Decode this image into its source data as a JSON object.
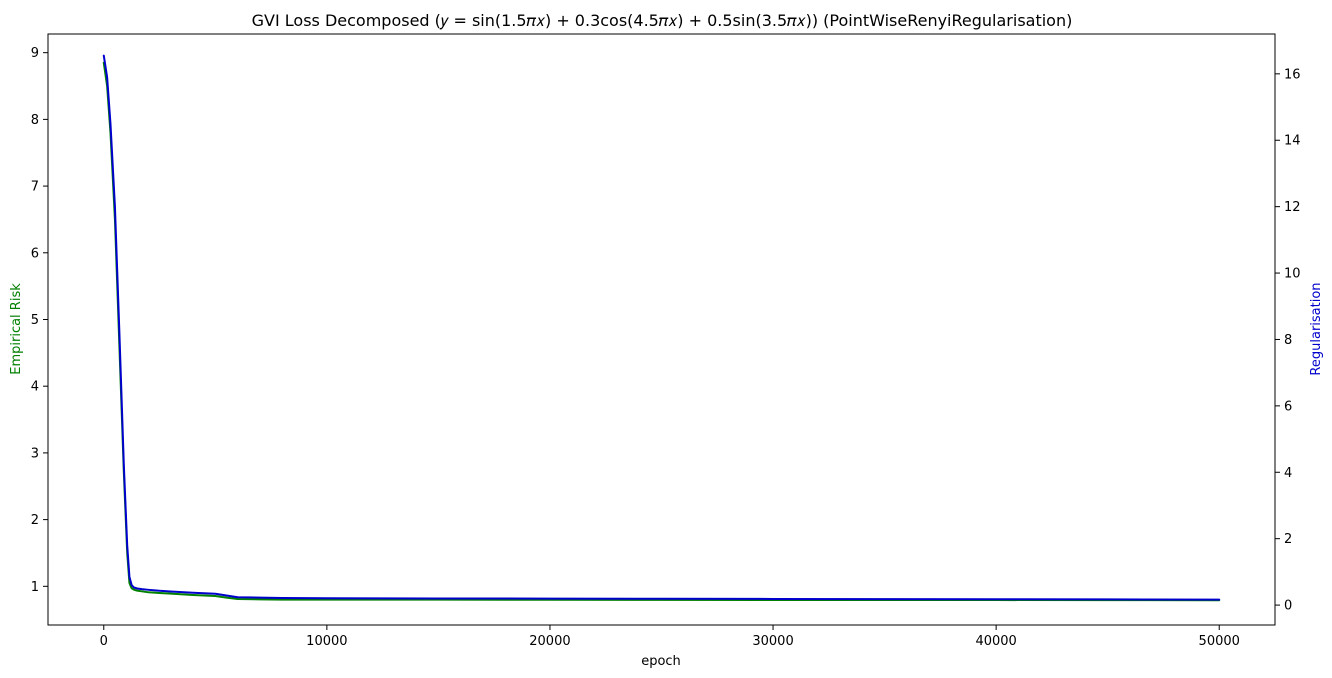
{
  "chart_data": {
    "type": "line",
    "title": "GVI Loss Decomposed (𝑦 = sin(1.5𝜋𝑥) + 0.3cos(4.5𝜋𝑥) + 0.5sin(3.5𝜋𝑥)) (PointWiseRenyiRegularisation)",
    "xlabel": "epoch",
    "ylabel_left": "Empirical Risk",
    "ylabel_right": "Regularisation",
    "xlim": [
      -2500,
      52500
    ],
    "ylim_left": [
      0.42,
      9.28
    ],
    "ylim_right": [
      -0.6,
      17.2
    ],
    "xticks": [
      0,
      10000,
      20000,
      30000,
      40000,
      50000
    ],
    "yticks_left": [
      1,
      2,
      3,
      4,
      5,
      6,
      7,
      8,
      9
    ],
    "yticks_right": [
      0,
      2,
      4,
      6,
      8,
      10,
      12,
      14,
      16
    ],
    "grid": false,
    "series": [
      {
        "color": "#008000",
        "axis": "left",
        "x": [
          0,
          150,
          300,
          500,
          700,
          900,
          1050,
          1150,
          1250,
          1350,
          1500,
          1700,
          2000,
          2500,
          3000,
          4000,
          5000,
          5500,
          6000,
          7000,
          8000,
          10000,
          15000,
          20000,
          25000,
          30000,
          35000,
          40000,
          45000,
          50000
        ],
        "y": [
          8.85,
          8.5,
          7.8,
          6.5,
          4.6,
          2.7,
          1.5,
          1.05,
          0.97,
          0.95,
          0.935,
          0.925,
          0.91,
          0.9,
          0.89,
          0.87,
          0.855,
          0.83,
          0.81,
          0.805,
          0.8,
          0.8,
          0.8,
          0.798,
          0.797,
          0.795,
          0.795,
          0.794,
          0.793,
          0.792
        ]
      },
      {
        "color": "#0000cd",
        "axis": "right",
        "x": [
          0,
          150,
          300,
          500,
          700,
          900,
          1050,
          1150,
          1250,
          1350,
          1500,
          1700,
          2000,
          2500,
          3000,
          4000,
          5000,
          5500,
          6000,
          7000,
          8000,
          10000,
          15000,
          20000,
          25000,
          30000,
          35000,
          40000,
          45000,
          50000
        ],
        "y": [
          16.55,
          15.9,
          14.5,
          12.0,
          8.2,
          4.2,
          1.8,
          0.85,
          0.6,
          0.53,
          0.5,
          0.48,
          0.46,
          0.43,
          0.41,
          0.37,
          0.34,
          0.29,
          0.235,
          0.225,
          0.215,
          0.205,
          0.2,
          0.195,
          0.19,
          0.185,
          0.18,
          0.175,
          0.17,
          0.165
        ]
      }
    ]
  }
}
